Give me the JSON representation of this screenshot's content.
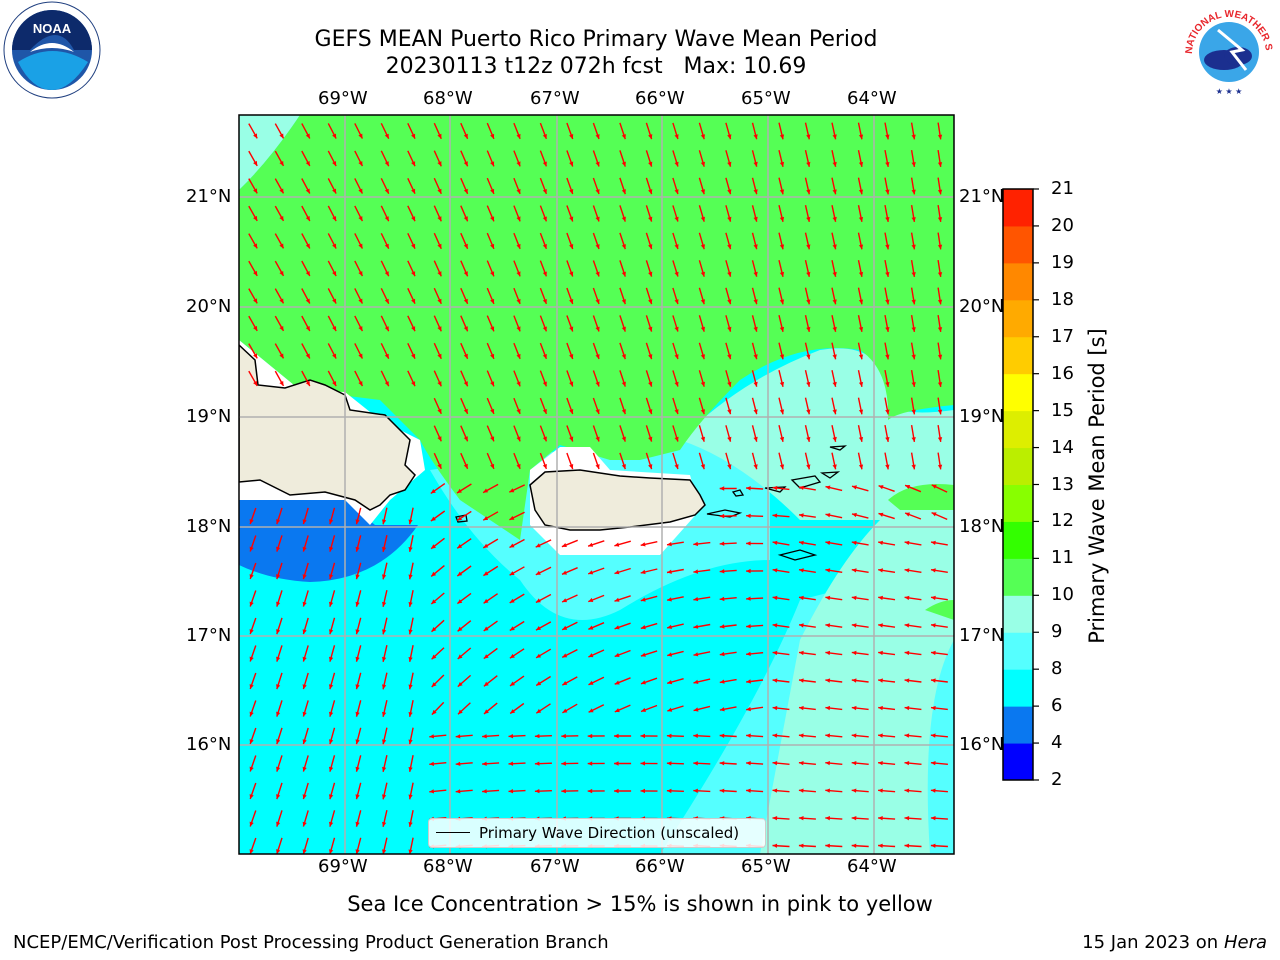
{
  "title": {
    "line1": "GEFS MEAN Puerto Rico Primary Wave Mean Period",
    "line2": "20230113 t12z 072h fcst   Max: 10.69"
  },
  "logos": {
    "noaa_text": "NOAA",
    "nws_text": "NATIONAL WEATHER SERVICE"
  },
  "map": {
    "lon_ticks": [
      "69°W",
      "68°W",
      "67°W",
      "66°W",
      "65°W",
      "64°W"
    ],
    "lat_ticks": [
      "21°N",
      "20°N",
      "19°N",
      "18°N",
      "17°N",
      "16°N"
    ],
    "legend_label": "Primary Wave Direction (unscaled)",
    "arrow_color": "#ff0000",
    "land_color": "#efecdc"
  },
  "colorbar": {
    "label": "Primary Wave Mean Period [s]",
    "ticks": [
      "2",
      "4",
      "6",
      "8",
      "9",
      "10",
      "11",
      "12",
      "13",
      "14",
      "15",
      "16",
      "17",
      "18",
      "19",
      "20",
      "21"
    ],
    "colors": [
      "#0000ff",
      "#0a78f0",
      "#00ffff",
      "#55ffff",
      "#99ffe6",
      "#55ff55",
      "#33ff00",
      "#88ff00",
      "#bbee00",
      "#ddee00",
      "#ffff00",
      "#ffcc00",
      "#ffaa00",
      "#ff8800",
      "#ff5500",
      "#ff2200"
    ]
  },
  "note": "Sea Ice Concentration > 15% is shown in pink to yellow",
  "footer": {
    "left": "NCEP/EMC/Verification Post Processing Product Generation Branch",
    "date": "15 Jan 2023 on",
    "machine": "Hera"
  }
}
